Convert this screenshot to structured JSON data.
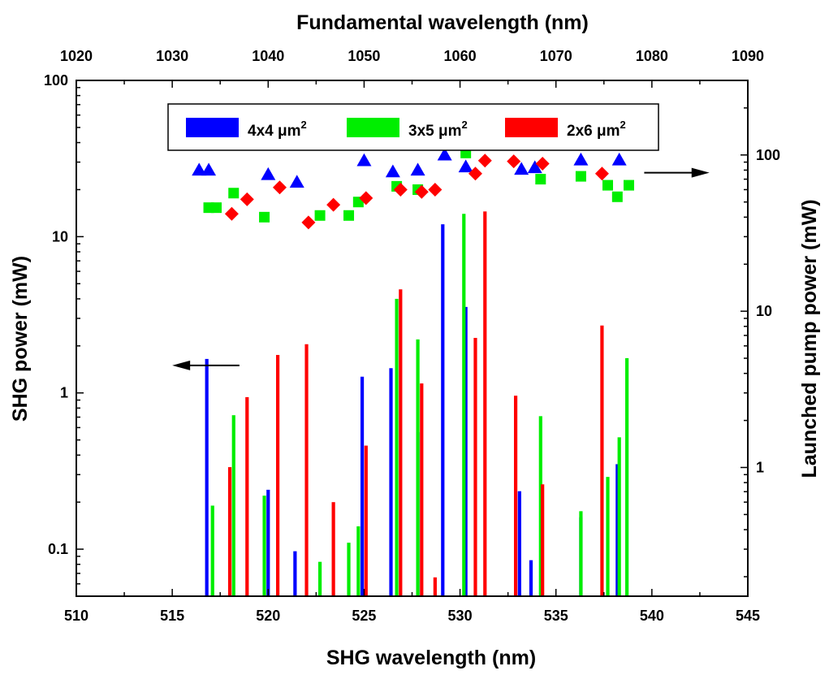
{
  "chart_data": {
    "type": "bar",
    "x_axis": {
      "label": "SHG wavelength (nm)",
      "range": [
        510,
        545
      ],
      "ticks": [
        "510",
        "515",
        "520",
        "525",
        "530",
        "535",
        "540",
        "545"
      ]
    },
    "top_axis": {
      "label": "Fundamental wavelength (nm)",
      "range": [
        1020,
        1090
      ],
      "ticks": [
        "1020",
        "1030",
        "1040",
        "1050",
        "1060",
        "1070",
        "1080",
        "1090"
      ]
    },
    "y_left": {
      "label": "SHG power (mW)",
      "scale": "log",
      "range": [
        0.05,
        100
      ],
      "ticks": [
        "0.1",
        "1",
        "10",
        "100"
      ]
    },
    "y_right": {
      "label": "Launched pump power (mW)",
      "scale": "log",
      "range": [
        0.15,
        300
      ],
      "ticks": [
        "1",
        "10",
        "100"
      ]
    },
    "legend": {
      "placement": "top-center",
      "entries": [
        {
          "label": "4x4 μm",
          "sup": "2",
          "color": "#0000ff"
        },
        {
          "label": "3x5 μm",
          "sup": "2",
          "color": "#00ee00"
        },
        {
          "label": "2x6 μm",
          "sup": "2",
          "color": "#ff0000"
        }
      ]
    },
    "series": [
      {
        "legend": "4x4 μm2",
        "color": "#0000ff",
        "marker": "triangle",
        "shg_bars": [
          {
            "x": 516.8,
            "y": 1.65
          },
          {
            "x": 520.0,
            "y": 0.24
          },
          {
            "x": 521.4,
            "y": 0.097
          },
          {
            "x": 524.9,
            "y": 1.27
          },
          {
            "x": 526.4,
            "y": 1.44
          },
          {
            "x": 527.8,
            "y": 0.56
          },
          {
            "x": 529.1,
            "y": 12.0
          },
          {
            "x": 530.3,
            "y": 3.55
          },
          {
            "x": 533.1,
            "y": 0.235
          },
          {
            "x": 533.7,
            "y": 0.085
          },
          {
            "x": 536.3,
            "y": 0.16
          },
          {
            "x": 538.2,
            "y": 0.35
          }
        ],
        "pump_points": [
          {
            "x": 516.4,
            "y": 80
          },
          {
            "x": 516.9,
            "y": 80
          },
          {
            "x": 520.0,
            "y": 75
          },
          {
            "x": 521.5,
            "y": 67
          },
          {
            "x": 525.0,
            "y": 92
          },
          {
            "x": 526.5,
            "y": 78
          },
          {
            "x": 527.8,
            "y": 80
          },
          {
            "x": 529.2,
            "y": 100
          },
          {
            "x": 530.3,
            "y": 84
          },
          {
            "x": 533.2,
            "y": 81
          },
          {
            "x": 533.9,
            "y": 83
          },
          {
            "x": 536.3,
            "y": 93
          },
          {
            "x": 538.3,
            "y": 93
          }
        ]
      },
      {
        "legend": "3x5 μm2",
        "color": "#00ee00",
        "marker": "square",
        "shg_bars": [
          {
            "x": 517.1,
            "y": 0.19
          },
          {
            "x": 518.2,
            "y": 0.72
          },
          {
            "x": 519.8,
            "y": 0.22
          },
          {
            "x": 522.7,
            "y": 0.083
          },
          {
            "x": 524.2,
            "y": 0.11
          },
          {
            "x": 524.7,
            "y": 0.14
          },
          {
            "x": 526.7,
            "y": 4.0
          },
          {
            "x": 527.8,
            "y": 2.2
          },
          {
            "x": 530.2,
            "y": 14.0
          },
          {
            "x": 534.2,
            "y": 0.71
          },
          {
            "x": 536.3,
            "y": 0.175
          },
          {
            "x": 537.7,
            "y": 0.29
          },
          {
            "x": 538.3,
            "y": 0.52
          },
          {
            "x": 538.7,
            "y": 1.67
          }
        ],
        "pump_points": [
          {
            "x": 516.9,
            "y": 46
          },
          {
            "x": 517.3,
            "y": 46
          },
          {
            "x": 518.2,
            "y": 57
          },
          {
            "x": 519.8,
            "y": 40
          },
          {
            "x": 522.7,
            "y": 41
          },
          {
            "x": 524.2,
            "y": 41
          },
          {
            "x": 524.7,
            "y": 50
          },
          {
            "x": 526.7,
            "y": 63
          },
          {
            "x": 527.8,
            "y": 60
          },
          {
            "x": 530.3,
            "y": 103
          },
          {
            "x": 534.2,
            "y": 70
          },
          {
            "x": 536.3,
            "y": 73
          },
          {
            "x": 537.7,
            "y": 64
          },
          {
            "x": 538.2,
            "y": 54
          },
          {
            "x": 538.8,
            "y": 64
          }
        ]
      },
      {
        "legend": "2x6 μm2",
        "color": "#ff0000",
        "marker": "diamond",
        "shg_bars": [
          {
            "x": 518.0,
            "y": 0.335
          },
          {
            "x": 518.9,
            "y": 0.94
          },
          {
            "x": 520.5,
            "y": 1.75
          },
          {
            "x": 522.0,
            "y": 2.05
          },
          {
            "x": 523.4,
            "y": 0.2
          },
          {
            "x": 525.1,
            "y": 0.46
          },
          {
            "x": 526.9,
            "y": 4.6
          },
          {
            "x": 528.0,
            "y": 1.15
          },
          {
            "x": 528.7,
            "y": 0.066
          },
          {
            "x": 530.8,
            "y": 2.25
          },
          {
            "x": 531.3,
            "y": 14.5
          },
          {
            "x": 532.9,
            "y": 0.96
          },
          {
            "x": 534.3,
            "y": 0.26
          },
          {
            "x": 537.4,
            "y": 2.7
          }
        ],
        "pump_points": [
          {
            "x": 518.1,
            "y": 42
          },
          {
            "x": 518.9,
            "y": 52
          },
          {
            "x": 520.6,
            "y": 62
          },
          {
            "x": 522.1,
            "y": 37
          },
          {
            "x": 523.4,
            "y": 48
          },
          {
            "x": 525.1,
            "y": 53
          },
          {
            "x": 526.9,
            "y": 60
          },
          {
            "x": 528.0,
            "y": 58
          },
          {
            "x": 528.7,
            "y": 60
          },
          {
            "x": 530.8,
            "y": 76
          },
          {
            "x": 531.3,
            "y": 92
          },
          {
            "x": 532.8,
            "y": 91
          },
          {
            "x": 534.3,
            "y": 88
          },
          {
            "x": 537.4,
            "y": 76
          }
        ]
      }
    ],
    "annotations": [
      {
        "type": "arrow",
        "direction": "left",
        "indicates_axis": "left",
        "level": 1.5,
        "x_from": 518.5,
        "x_to": 515.0
      },
      {
        "type": "arrow",
        "direction": "right",
        "indicates_axis": "right",
        "level": 77,
        "x_from": 539.6,
        "x_to": 543.0
      }
    ]
  }
}
